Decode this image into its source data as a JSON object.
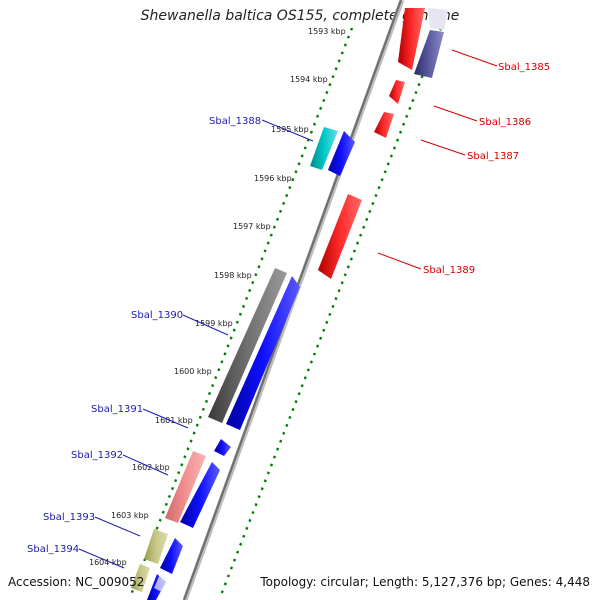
{
  "title": "Shewanella baltica OS155, complete genome",
  "footer": {
    "accession": "Accession: NC_009052",
    "summary": "Topology: circular; Length: 5,127,376 bp; Genes: 4,448"
  },
  "scale_labels": [
    "1593 kbp",
    "1594 kbp",
    "1595 kbp",
    "1596 kbp",
    "1597 kbp",
    "1598 kbp",
    "1599 kbp",
    "1600 kbp",
    "1601 kbp",
    "1602 kbp",
    "1603 kbp",
    "1604 kbp"
  ],
  "gene_labels": {
    "left": [
      "Sbal_1388",
      "Sbal_1390",
      "Sbal_1391",
      "Sbal_1392",
      "Sbal_1393",
      "Sbal_1394"
    ],
    "right": [
      "Sbal_1385",
      "Sbal_1386",
      "Sbal_1387",
      "Sbal_1389"
    ]
  },
  "colors": {
    "forward_strand": "#0000ff",
    "reverse_strand": "#ff0000",
    "scale_dots": "#008000",
    "backbone": "#808080",
    "label_left": "#1b1bb4",
    "label_right": "#d40000"
  }
}
